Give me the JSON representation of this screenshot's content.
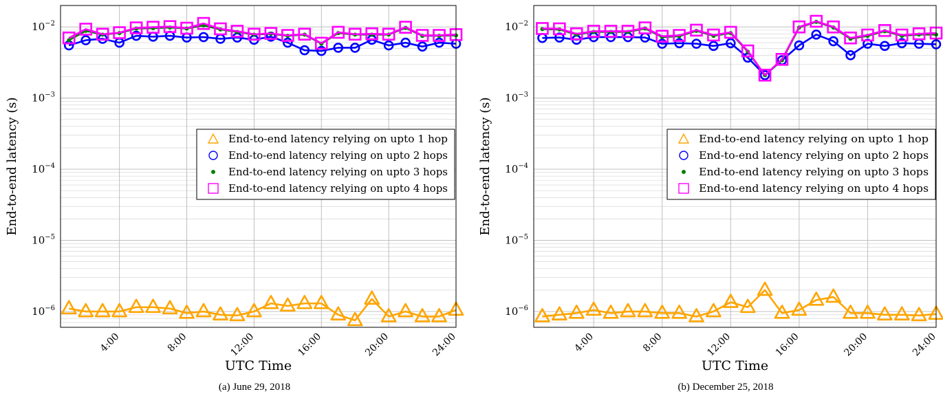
{
  "figure": {
    "captions": [
      "(a) June 29, 2018",
      "(b) December 25, 2018"
    ]
  },
  "colors": {
    "hop1": "#FFA500",
    "hop2": "#0000FF",
    "hop3": "#008000",
    "hop4": "#FF00FF",
    "grid": "#cfcfcf"
  },
  "chart_data": [
    {
      "type": "line",
      "title": "(a) June 29, 2018",
      "xlabel": "UTC Time",
      "ylabel": "End-to-end latency (s)",
      "y_scale": "log",
      "ylim": [
        6e-07,
        0.02
      ],
      "xlim": [
        0.5,
        24
      ],
      "x_ticks": [
        4,
        8,
        12,
        16,
        20,
        24
      ],
      "x_tick_labels": [
        "4:00",
        "8:00",
        "12:00",
        "16:00",
        "20:00",
        "24:00"
      ],
      "y_ticks": [
        1e-06,
        1e-05,
        0.0001,
        0.001,
        0.01
      ],
      "y_tick_labels": [
        "10",
        "10",
        "10",
        "10",
        "10"
      ],
      "y_tick_exponents": [
        "−6",
        "−5",
        "−4",
        "−3",
        "−2"
      ],
      "grid": true,
      "legend_position": "right-middle",
      "x": [
        1,
        2,
        3,
        4,
        5,
        6,
        7,
        8,
        9,
        10,
        11,
        12,
        13,
        14,
        15,
        16,
        17,
        18,
        19,
        20,
        21,
        22,
        23,
        24
      ],
      "series": [
        {
          "name": "End-to-end latency relying on upto 1 hop",
          "marker": "triangle",
          "color": "#FFA500",
          "values": [
            1.1e-06,
            1e-06,
            1e-06,
            1e-06,
            1.15e-06,
            1.15e-06,
            1.1e-06,
            9.5e-07,
            1e-06,
            9e-07,
            8.8e-07,
            1e-06,
            1.3e-06,
            1.2e-06,
            1.3e-06,
            1.3e-06,
            9e-07,
            7.5e-07,
            1.5e-06,
            8.5e-07,
            1e-06,
            8.5e-07,
            8.5e-07,
            1.05e-06
          ]
        },
        {
          "name": "End-to-end latency relying on upto 2 hops",
          "marker": "circle",
          "color": "#0000FF",
          "values": [
            0.0055,
            0.0065,
            0.0068,
            0.006,
            0.0075,
            0.0073,
            0.0075,
            0.0071,
            0.0072,
            0.0068,
            0.0071,
            0.0066,
            0.0073,
            0.006,
            0.0047,
            0.0046,
            0.0051,
            0.0051,
            0.0066,
            0.0055,
            0.006,
            0.0053,
            0.006,
            0.0058
          ]
        },
        {
          "name": "End-to-end latency relying on upto 3 hops",
          "marker": "dot",
          "color": "#008000",
          "values": [
            0.0065,
            0.0088,
            0.0078,
            0.0082,
            0.0095,
            0.0096,
            0.0098,
            0.0095,
            0.0105,
            0.0092,
            0.0085,
            0.0078,
            0.008,
            0.0075,
            0.0078,
            0.0058,
            0.0082,
            0.0078,
            0.0078,
            0.0078,
            0.0097,
            0.0075,
            0.0075,
            0.0076
          ]
        },
        {
          "name": "End-to-end latency relying on upto 4 hops",
          "marker": "square",
          "color": "#FF00FF",
          "values": [
            0.007,
            0.0093,
            0.0079,
            0.0083,
            0.0097,
            0.0099,
            0.0101,
            0.0096,
            0.0112,
            0.0094,
            0.0087,
            0.0079,
            0.0081,
            0.0076,
            0.0079,
            0.0059,
            0.0084,
            0.0079,
            0.008,
            0.0079,
            0.0099,
            0.0076,
            0.0076,
            0.0078
          ]
        }
      ]
    },
    {
      "type": "line",
      "title": "(b) December 25, 2018",
      "xlabel": "UTC Time",
      "ylabel": "End-to-end latency (s)",
      "y_scale": "log",
      "ylim": [
        6e-07,
        0.02
      ],
      "xlim": [
        0.5,
        24
      ],
      "x_ticks": [
        4,
        8,
        12,
        16,
        20,
        24
      ],
      "x_tick_labels": [
        "4:00",
        "8:00",
        "12:00",
        "16:00",
        "20:00",
        "24:00"
      ],
      "y_ticks": [
        1e-06,
        1e-05,
        0.0001,
        0.001,
        0.01
      ],
      "y_tick_labels": [
        "10",
        "10",
        "10",
        "10",
        "10"
      ],
      "y_tick_exponents": [
        "−6",
        "−5",
        "−4",
        "−3",
        "−2"
      ],
      "grid": true,
      "legend_position": "right-middle",
      "x": [
        1,
        2,
        3,
        4,
        5,
        6,
        7,
        8,
        9,
        10,
        11,
        12,
        13,
        14,
        15,
        16,
        17,
        18,
        19,
        20,
        21,
        22,
        23,
        24
      ],
      "series": [
        {
          "name": "End-to-end latency relying on upto 1 hop",
          "marker": "triangle",
          "color": "#FFA500",
          "values": [
            8.5e-07,
            9e-07,
            9.5e-07,
            1.05e-06,
            9.5e-07,
            1e-06,
            1e-06,
            9.5e-07,
            9.5e-07,
            8.5e-07,
            1e-06,
            1.35e-06,
            1.15e-06,
            2e-06,
            9.5e-07,
            1.05e-06,
            1.45e-06,
            1.6e-06,
            9.5e-07,
            9.5e-07,
            9e-07,
            9e-07,
            8.8e-07,
            9.2e-07
          ]
        },
        {
          "name": "End-to-end latency relying on upto 2 hops",
          "marker": "circle",
          "color": "#0000FF",
          "values": [
            0.007,
            0.0071,
            0.0066,
            0.0072,
            0.0072,
            0.0072,
            0.0071,
            0.0058,
            0.0059,
            0.0058,
            0.0054,
            0.0059,
            0.0037,
            0.0021,
            0.0034,
            0.0055,
            0.0078,
            0.0063,
            0.004,
            0.0058,
            0.0054,
            0.0059,
            0.0058,
            0.0057
          ]
        },
        {
          "name": "End-to-end latency relying on upto 3 hops",
          "marker": "dot",
          "color": "#008000",
          "values": [
            0.0093,
            0.0092,
            0.0078,
            0.0085,
            0.0085,
            0.0085,
            0.0095,
            0.0072,
            0.0074,
            0.0088,
            0.0075,
            0.0082,
            0.0045,
            0.0021,
            0.0034,
            0.0098,
            0.0118,
            0.0098,
            0.0068,
            0.0075,
            0.0087,
            0.0075,
            0.0078,
            0.0078
          ]
        },
        {
          "name": "End-to-end latency relying on upto 4 hops",
          "marker": "square",
          "color": "#FF00FF",
          "values": [
            0.0095,
            0.0094,
            0.008,
            0.0087,
            0.0087,
            0.0087,
            0.0097,
            0.0074,
            0.0076,
            0.009,
            0.0077,
            0.0084,
            0.0046,
            0.0021,
            0.0035,
            0.01,
            0.012,
            0.01,
            0.007,
            0.0077,
            0.0089,
            0.0077,
            0.008,
            0.0082
          ]
        }
      ]
    }
  ]
}
